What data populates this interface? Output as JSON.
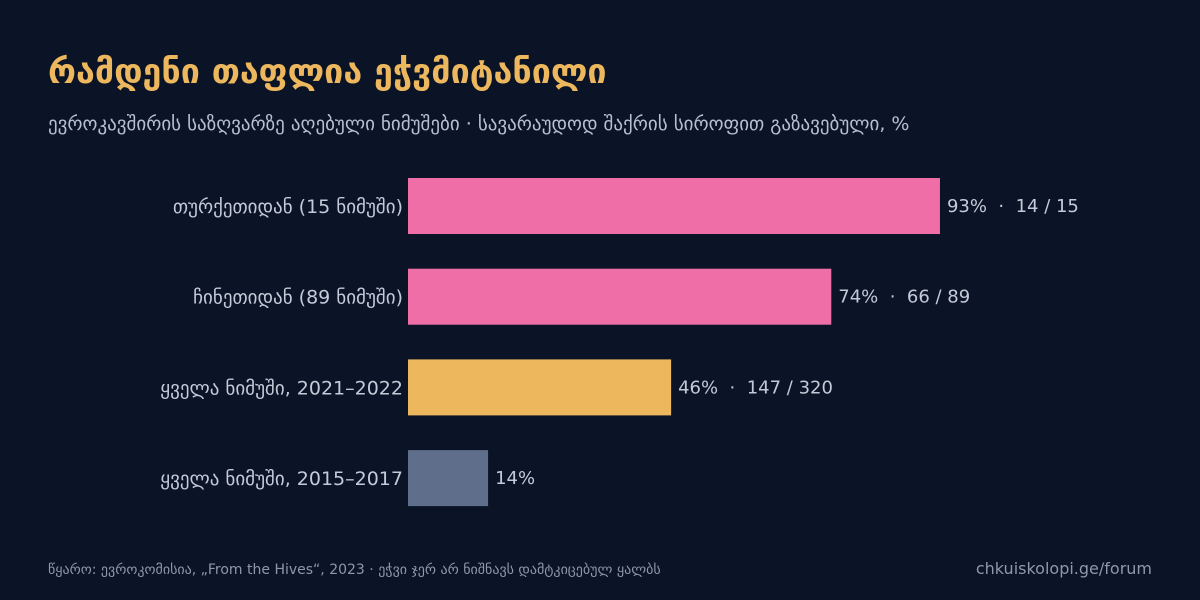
{
  "title": "რამდენი თაფლია ეჭვმიტანილი",
  "subtitle": "ევროკავშირის საზღვარზე აღებული ნიმუშები · სავარაუდოდ შაქრის სიროფით გაზავებული, %",
  "chart_data": {
    "type": "bar",
    "orientation": "horizontal",
    "unit": "%",
    "xlim": [
      0,
      100
    ],
    "grid": false,
    "categories": [
      "თურქეთიდან (15 ნიმუში)",
      "ჩინეთიდან (89 ნიმუში)",
      "ყველა ნიმუში, 2021–2022",
      "ყველა ნიმუში, 2015–2017"
    ],
    "values": [
      93,
      74,
      46,
      14
    ],
    "labels": [
      "93%  ·  14 / 15",
      "74%  ·  66 / 89",
      "46%  ·  147 / 320",
      "14%"
    ],
    "colors": [
      "#f06ea8",
      "#f06ea8",
      "#edb75e",
      "#5e6e8b"
    ]
  },
  "footer": {
    "source": "წყარო: ევროკომისია, „From the Hives“, 2023 · ეჭვი ჯერ არ ნიშნავს დამტკიცებულ ყალბს",
    "site": "chkuiskolopi.ge/forum"
  }
}
